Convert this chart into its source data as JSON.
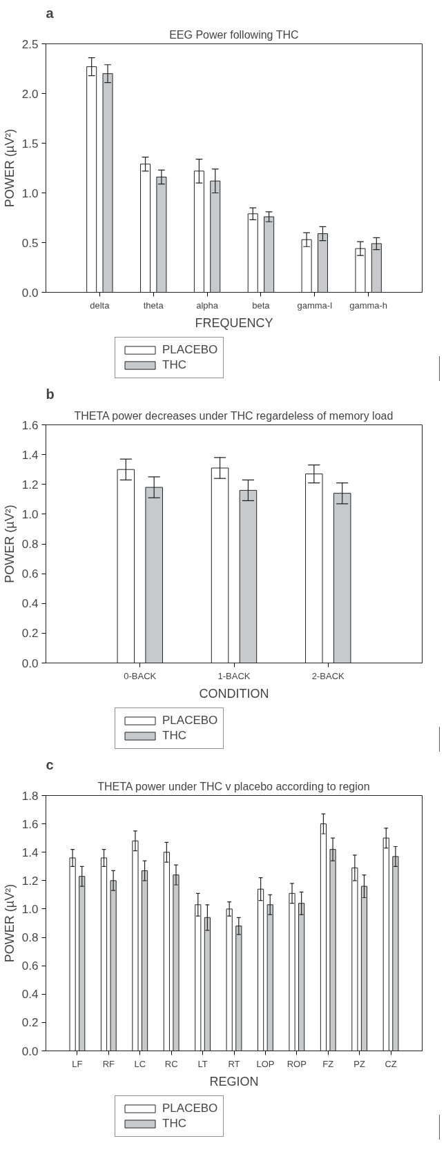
{
  "chart_data": [
    {
      "type": "bar",
      "title": "EEG Power following THC",
      "annotations": [
        "a"
      ],
      "xlabel": "FREQUENCY",
      "ylabel": "POWER (µV²)",
      "categories": [
        "delta",
        "theta",
        "alpha",
        "beta",
        "gamma-l",
        "gamma-h"
      ],
      "series": [
        {
          "name": "PLACEBO",
          "color": "#ffffff",
          "values": [
            2.27,
            1.29,
            1.22,
            0.79,
            0.53,
            0.44
          ],
          "errors": [
            0.09,
            0.07,
            0.12,
            0.06,
            0.07,
            0.07
          ]
        },
        {
          "name": "THC",
          "color": "#c8c9cb",
          "values": [
            2.2,
            1.16,
            1.12,
            0.76,
            0.59,
            0.49
          ],
          "errors": [
            0.09,
            0.07,
            0.12,
            0.05,
            0.07,
            0.06
          ]
        }
      ],
      "ylim": [
        0,
        2.5
      ],
      "yticks": [
        {
          "value": 0,
          "label": "0.0"
        },
        {
          "value": 0.5,
          "label": "0.5"
        },
        {
          "value": 1,
          "label": "1.0"
        },
        {
          "value": 1.5,
          "label": "1.5"
        },
        {
          "value": 2,
          "label": "2.0"
        },
        {
          "value": 2.5,
          "label": "2.5"
        }
      ],
      "legend": "bottom left",
      "grid": false
    },
    {
      "type": "bar",
      "title": "THETA power decreases under THC regardeless of memory load",
      "annotations": [
        "b"
      ],
      "xlabel": "CONDITION",
      "ylabel": "POWER (µV²)",
      "categories": [
        "0-BACK",
        "1-BACK",
        "2-BACK"
      ],
      "series": [
        {
          "name": "PLACEBO",
          "color": "#ffffff",
          "values": [
            1.3,
            1.31,
            1.27
          ],
          "errors": [
            0.07,
            0.07,
            0.06
          ]
        },
        {
          "name": "THC",
          "color": "#c8c9cb",
          "values": [
            1.18,
            1.16,
            1.14
          ],
          "errors": [
            0.07,
            0.07,
            0.07
          ]
        }
      ],
      "ylim": [
        0,
        1.6
      ],
      "yticks": [
        {
          "value": 0,
          "label": "0.0"
        },
        {
          "value": 0.2,
          "label": "0.2"
        },
        {
          "value": 0.4,
          "label": "0.4"
        },
        {
          "value": 0.6,
          "label": "0.6"
        },
        {
          "value": 0.8,
          "label": "0.8"
        },
        {
          "value": 1,
          "label": "1.0"
        },
        {
          "value": 1.2,
          "label": "1.2"
        },
        {
          "value": 1.4,
          "label": "1.4"
        },
        {
          "value": 1.6,
          "label": "1.6"
        }
      ],
      "legend": "bottom left",
      "grid": false
    },
    {
      "type": "bar",
      "title": "THETA power under THC v placebo according to region",
      "annotations": [
        "c"
      ],
      "xlabel": "REGION",
      "ylabel": "POWER (µV²)",
      "categories": [
        "LF",
        "RF",
        "LC",
        "RC",
        "LT",
        "RT",
        "LOP",
        "ROP",
        "FZ",
        "PZ",
        "CZ"
      ],
      "series": [
        {
          "name": "PLACEBO",
          "color": "#ffffff",
          "values": [
            1.36,
            1.36,
            1.48,
            1.4,
            1.03,
            1.0,
            1.14,
            1.11,
            1.6,
            1.29,
            1.5
          ],
          "errors": [
            0.06,
            0.06,
            0.07,
            0.07,
            0.08,
            0.05,
            0.08,
            0.07,
            0.07,
            0.09,
            0.07
          ]
        },
        {
          "name": "THC",
          "color": "#c8c9cb",
          "values": [
            1.23,
            1.2,
            1.27,
            1.24,
            0.94,
            0.88,
            1.03,
            1.04,
            1.42,
            1.16,
            1.37
          ],
          "errors": [
            0.07,
            0.07,
            0.07,
            0.07,
            0.09,
            0.06,
            0.07,
            0.08,
            0.08,
            0.08,
            0.07
          ]
        }
      ],
      "ylim": [
        0,
        1.8
      ],
      "yticks": [
        {
          "value": 0,
          "label": "0.0"
        },
        {
          "value": 0.2,
          "label": "0.2"
        },
        {
          "value": 0.4,
          "label": "0.4"
        },
        {
          "value": 0.6,
          "label": "0.6"
        },
        {
          "value": 0.8,
          "label": "0.8"
        },
        {
          "value": 1,
          "label": "1.0"
        },
        {
          "value": 1.2,
          "label": "1.2"
        },
        {
          "value": 1.4,
          "label": "1.4"
        },
        {
          "value": 1.6,
          "label": "1.6"
        },
        {
          "value": 1.8,
          "label": "1.8"
        }
      ],
      "legend": "bottom left",
      "grid": false
    }
  ]
}
